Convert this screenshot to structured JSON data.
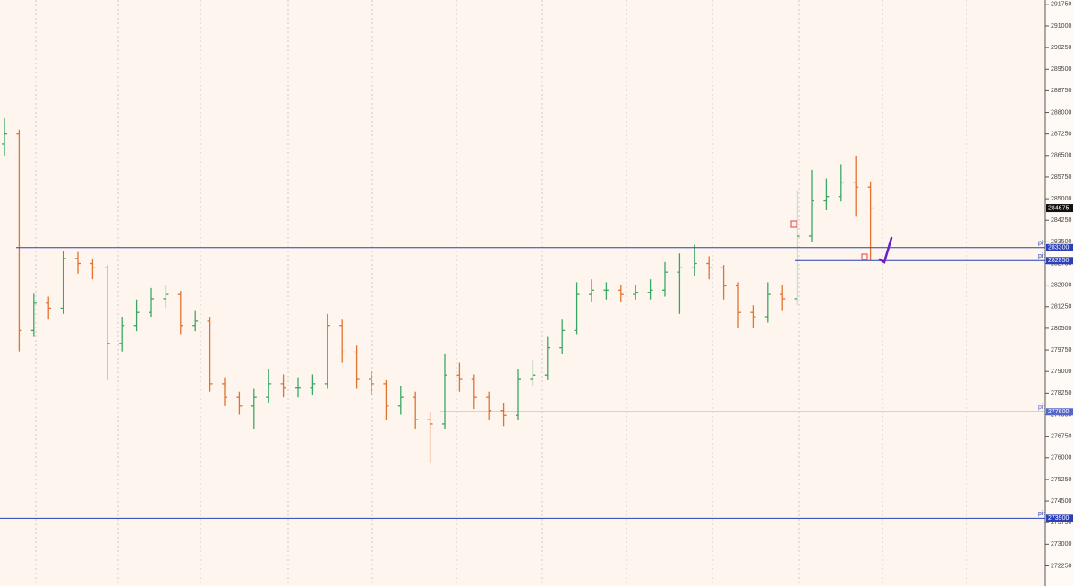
{
  "chart_data": {
    "type": "ohlc",
    "ylim": [
      271550,
      291900
    ],
    "yticks": [
      291750,
      291000,
      290250,
      289500,
      288750,
      288000,
      287250,
      286500,
      285750,
      285000,
      284250,
      283500,
      282750,
      282000,
      281250,
      280500,
      279750,
      279000,
      278250,
      277500,
      276750,
      276000,
      275250,
      274500,
      273750,
      273000,
      272250
    ],
    "up_color": "#3aa864",
    "down_color": "#e2732e",
    "open": [
      286900,
      287250,
      280425,
      281375,
      281200,
      282925,
      282750,
      282600,
      279975,
      280600,
      281050,
      281525,
      281675,
      280600,
      280750,
      278575,
      278100,
      277800,
      278100,
      278575,
      278425,
      278425,
      278575,
      280600,
      279675,
      278725,
      278575,
      277800,
      278100,
      277325,
      277175,
      278875,
      278725,
      278100,
      277650,
      277475,
      278725,
      278875,
      279825,
      280425,
      281675,
      281825,
      281825,
      281675,
      281750,
      281825,
      282450,
      282600,
      282750,
      282600,
      281975,
      281050,
      280900,
      281675,
      281525,
      283700,
      284925,
      285075,
      285550,
      285400
    ],
    "high": [
      287800,
      287400,
      281700,
      281600,
      283200,
      283150,
      282900,
      282700,
      280900,
      281500,
      281900,
      282000,
      281800,
      281100,
      280900,
      278800,
      278300,
      278400,
      279100,
      278900,
      278800,
      278900,
      281000,
      280800,
      279900,
      279000,
      278700,
      278500,
      278300,
      277600,
      279600,
      279300,
      278900,
      278300,
      277900,
      279100,
      279400,
      280200,
      280800,
      282100,
      282200,
      282100,
      282000,
      282000,
      282200,
      282800,
      283100,
      283400,
      283000,
      282700,
      282100,
      281300,
      282100,
      282000,
      285300,
      286000,
      285700,
      286200,
      286500,
      285600
    ],
    "low": [
      286500,
      279700,
      280200,
      280800,
      281000,
      282400,
      282200,
      278700,
      279700,
      280400,
      280900,
      281200,
      280300,
      280400,
      278300,
      277800,
      277500,
      277000,
      277900,
      278100,
      278100,
      278200,
      278400,
      279300,
      278400,
      278200,
      277300,
      277500,
      277000,
      275800,
      277000,
      278300,
      277700,
      277300,
      277100,
      277300,
      278500,
      278700,
      279600,
      280300,
      281400,
      281500,
      281400,
      281500,
      281500,
      281600,
      281000,
      282300,
      282200,
      281500,
      280500,
      280500,
      280700,
      281100,
      281300,
      283500,
      284600,
      284900,
      284400,
      282850
    ],
    "close": [
      287250,
      280425,
      281375,
      281200,
      282925,
      282750,
      282600,
      279975,
      280600,
      281050,
      281525,
      281675,
      280600,
      280750,
      278575,
      278100,
      277800,
      278100,
      278575,
      278425,
      278425,
      278575,
      280600,
      279675,
      278725,
      278575,
      277800,
      278100,
      277325,
      277175,
      278875,
      278725,
      278100,
      277650,
      277475,
      278725,
      278875,
      279825,
      280425,
      281675,
      281825,
      281825,
      281675,
      281750,
      281825,
      282450,
      282600,
      282750,
      282600,
      281975,
      281050,
      280900,
      281675,
      281525,
      283700,
      284925,
      285075,
      285550,
      285400,
      284675
    ],
    "last_price": 284675,
    "levels": [
      {
        "label": "pit",
        "value": 283300,
        "color": "#2a3fb8"
      },
      {
        "label": "pit",
        "value": 282850,
        "color": "#2a3fb8"
      },
      {
        "label": "pit",
        "value": 277600,
        "color": "#5566cc"
      },
      {
        "label": "pit",
        "value": 273900,
        "color": "#2a3fb8"
      }
    ]
  }
}
